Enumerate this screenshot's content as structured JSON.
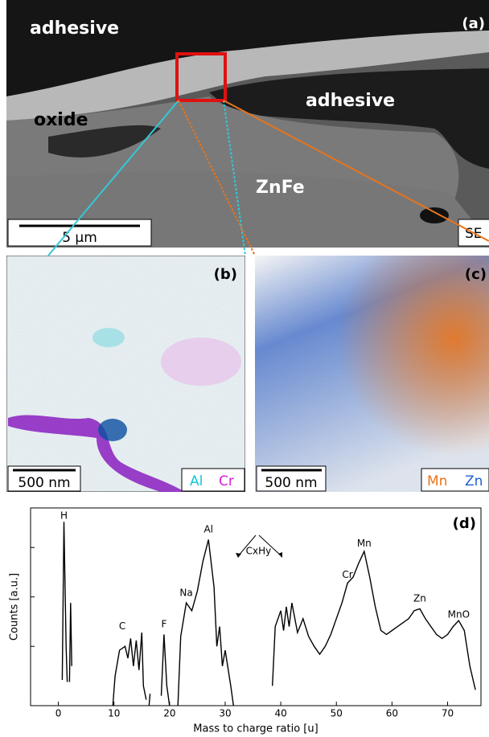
{
  "panels": {
    "a": {
      "label": "(a)",
      "regions": [
        "adhesive",
        "adhesive",
        "oxide",
        "ZnFe"
      ],
      "scale_bar": "5 µm",
      "detector": "SE"
    },
    "b": {
      "label": "(b)",
      "scale_bar": "500 nm",
      "elements": [
        {
          "name": "Al",
          "color": "#12c8d6"
        },
        {
          "name": "Cr",
          "color": "#d81ed8"
        }
      ]
    },
    "c": {
      "label": "(c)",
      "scale_bar": "500 nm",
      "elements": [
        {
          "name": "Mn",
          "color": "#e8741c"
        },
        {
          "name": "Zn",
          "color": "#1f5fd0"
        }
      ]
    }
  },
  "chart_data": {
    "type": "line",
    "panel_label": "(d)",
    "xlabel": "Mass to charge ratio [u]",
    "ylabel": "Counts [a.u.]",
    "xlim": [
      -5,
      76
    ],
    "xticks": [
      0,
      10,
      20,
      30,
      40,
      50,
      60,
      70
    ],
    "ylim": [
      0,
      100
    ],
    "annotations": [
      "H",
      "C",
      "F",
      "Na",
      "Al",
      "CxHy",
      "Cr",
      "Mn",
      "Zn",
      "MnO"
    ],
    "x": [
      0.7,
      1.0,
      1.4,
      1.6,
      null,
      2.0,
      2.2,
      2.4,
      null,
      9.8,
      10.2,
      11,
      12,
      12.5,
      13,
      13.5,
      14,
      14.5,
      15,
      15.3,
      15.8,
      null,
      16.3,
      16.5,
      null,
      18.5,
      19,
      19.5,
      20,
      null,
      21.5,
      22,
      23,
      24,
      25,
      26,
      27,
      28,
      28.5,
      29,
      29.5,
      30,
      31,
      31.5,
      null,
      38.5,
      39,
      40,
      40.5,
      41,
      41.5,
      42,
      43,
      44,
      45,
      46,
      47,
      48,
      49,
      50,
      51,
      52,
      53,
      54,
      55,
      56,
      57,
      58,
      59,
      60,
      61,
      62,
      63,
      64,
      65,
      66,
      67,
      68,
      69,
      70,
      71,
      72,
      73,
      74,
      75
    ],
    "series": [
      {
        "color": "#000000",
        "values": [
          13,
          93,
          30,
          12,
          null,
          12,
          52,
          20,
          null,
          0,
          15,
          28,
          30,
          24,
          34,
          20,
          33,
          18,
          37,
          10,
          3,
          null,
          0,
          6,
          null,
          5,
          36,
          10,
          0,
          null,
          0,
          35,
          52,
          48,
          58,
          73,
          84,
          60,
          30,
          40,
          20,
          28,
          10,
          0,
          null,
          10,
          40,
          48,
          38,
          50,
          40,
          52,
          37,
          44,
          35,
          30,
          26,
          30,
          36,
          44,
          52,
          62,
          65,
          72,
          78,
          65,
          50,
          38,
          36,
          38,
          40,
          42,
          44,
          48,
          49,
          44,
          40,
          36,
          34,
          36,
          40,
          43,
          38,
          20,
          8
        ]
      }
    ]
  }
}
